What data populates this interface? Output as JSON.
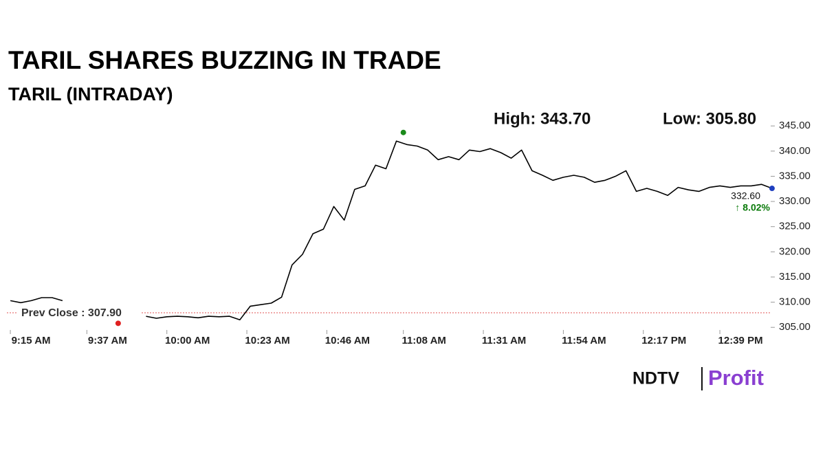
{
  "chart_data": {
    "type": "line",
    "title": "TARIL SHARES BUZZING IN TRADE",
    "subtitle": "TARIL (INTRADAY)",
    "x": [
      "9:15 AM",
      "9:18 AM",
      "9:21 AM",
      "9:24 AM",
      "9:27 AM",
      "9:30 AM",
      "9:33 AM",
      "9:36 AM",
      "9:39 AM",
      "9:42 AM",
      "9:45 AM",
      "9:48 AM",
      "9:51 AM",
      "9:54 AM",
      "9:57 AM",
      "10:00 AM",
      "10:03 AM",
      "10:06 AM",
      "10:09 AM",
      "10:12 AM",
      "10:15 AM",
      "10:18 AM",
      "10:21 AM",
      "10:24 AM",
      "10:27 AM",
      "10:30 AM",
      "10:33 AM",
      "10:36 AM",
      "10:39 AM",
      "10:42 AM",
      "10:45 AM",
      "10:48 AM",
      "10:51 AM",
      "10:54 AM",
      "10:57 AM",
      "11:00 AM",
      "11:03 AM",
      "11:06 AM",
      "11:09 AM",
      "11:12 AM",
      "11:15 AM",
      "11:18 AM",
      "11:21 AM",
      "11:24 AM",
      "11:27 AM",
      "11:30 AM",
      "11:33 AM",
      "11:36 AM",
      "11:39 AM",
      "11:42 AM",
      "11:45 AM",
      "11:48 AM",
      "11:51 AM",
      "11:54 AM",
      "11:57 AM",
      "12:00 PM",
      "12:03 PM",
      "12:06 PM",
      "12:09 PM",
      "12:12 PM",
      "12:15 PM",
      "12:18 PM",
      "12:21 PM",
      "12:24 PM",
      "12:27 PM",
      "12:30 PM",
      "12:33 PM",
      "12:36 PM",
      "12:39 PM",
      "12:42 PM",
      "12:45 PM",
      "12:48 PM",
      "12:51 PM",
      "12:54 PM"
    ],
    "series": [
      {
        "color": "#000000",
        "values": [
          310.3,
          309.9,
          310.3,
          310.9,
          310.9,
          310.3,
          null,
          null,
          null,
          null,
          null,
          null,
          null,
          307.2,
          306.8,
          307.1,
          307.2,
          307.1,
          306.9,
          307.2,
          307.1,
          307.2,
          306.5,
          309.2,
          309.5,
          309.8,
          311.0,
          317.4,
          319.5,
          323.6,
          324.5,
          329.0,
          326.3,
          332.4,
          333.1,
          337.2,
          336.5,
          342.0,
          341.3,
          341.0,
          340.2,
          338.3,
          338.9,
          338.3,
          340.2,
          339.9,
          340.5,
          339.7,
          338.6,
          340.2,
          336.1,
          335.2,
          334.2,
          334.8,
          335.2,
          334.8,
          333.8,
          334.2,
          335.0,
          336.1,
          332.0,
          332.6,
          332.0,
          331.2,
          332.8,
          332.3,
          332.0,
          332.8,
          333.1,
          332.8,
          333.1,
          333.1,
          333.4,
          332.6
        ]
      }
    ],
    "xlim": [
      "9:14 AM",
      "12:55 PM"
    ],
    "xticks": [
      "9:15 AM",
      "9:37 AM",
      "10:00 AM",
      "10:23 AM",
      "10:46 AM",
      "11:08 AM",
      "11:31 AM",
      "11:54 AM",
      "12:17 PM",
      "12:39 PM"
    ],
    "ylim": [
      303.8,
      346.8
    ],
    "yticks": [
      {
        "value": 305,
        "label": "305.00"
      },
      {
        "value": 310,
        "label": "310.00"
      },
      {
        "value": 315,
        "label": "315.00"
      },
      {
        "value": 320,
        "label": "320.00"
      },
      {
        "value": 325,
        "label": "325.00"
      },
      {
        "value": 330,
        "label": "330.00"
      },
      {
        "value": 335,
        "label": "335.00"
      },
      {
        "value": 340,
        "label": "340.00"
      },
      {
        "value": 345,
        "label": "345.00"
      }
    ],
    "high": {
      "x": "11:08 AM",
      "value": 343.7,
      "value_label": "High: 343.70",
      "color": "#1a8a1a"
    },
    "low": {
      "x": "9:46 AM",
      "value": 305.8,
      "value_label": "Low: 305.80",
      "color": "#e02020"
    },
    "last": {
      "x": "12:54 PM",
      "value": 332.6,
      "value_label": "332.60",
      "change_label": "↑ 8.02%",
      "color": "#1f3fbf",
      "change_color": "#0a7a0a"
    },
    "prev_close": {
      "value": 307.9,
      "value_label": "Prev Close : 307.90",
      "color": "#e05050"
    },
    "brand": {
      "name": "NDTV",
      "product": "Profit"
    }
  }
}
